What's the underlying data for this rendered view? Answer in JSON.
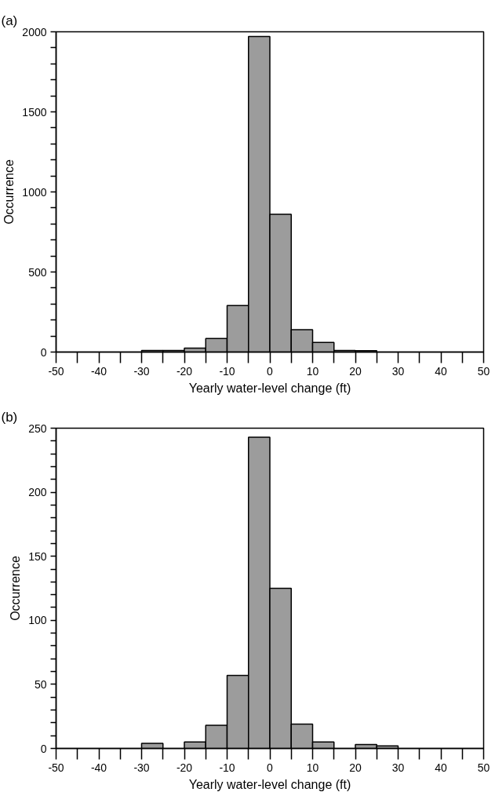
{
  "chart_data": [
    {
      "type": "histogram",
      "title": "(a)",
      "xlabel": "Yearly water-level change (ft)",
      "ylabel": "Occurrence",
      "color": "#9c9c9c",
      "bins": [
        -50,
        -45,
        -40,
        -35,
        -30,
        -25,
        -20,
        -15,
        -10,
        -5,
        0,
        5,
        10,
        15,
        20,
        25,
        30,
        35,
        40,
        45,
        50
      ],
      "values": [
        0,
        0,
        0,
        0,
        10,
        10,
        25,
        85,
        290,
        1970,
        860,
        140,
        60,
        10,
        8,
        0,
        0,
        0,
        0,
        0
      ],
      "xlim": [
        -50,
        50
      ],
      "ylim": [
        0,
        2000
      ],
      "xticks": [
        -50,
        {
          "value": -45,
          "label": null
        },
        -40,
        {
          "value": -35,
          "label": null
        },
        -30,
        {
          "value": -25,
          "label": null
        },
        -20,
        {
          "value": -15,
          "label": null
        },
        -10,
        {
          "value": -5,
          "label": null
        },
        0,
        {
          "value": 5,
          "label": null
        },
        10,
        {
          "value": 15,
          "label": null
        },
        20,
        {
          "value": 25,
          "label": null
        },
        30,
        {
          "value": 35,
          "label": null
        },
        40,
        {
          "value": 45,
          "label": null
        },
        50
      ],
      "yticks": [
        0,
        {
          "value": 100,
          "label": null
        },
        {
          "value": 200,
          "label": null
        },
        {
          "value": 300,
          "label": null
        },
        {
          "value": 400,
          "label": null
        },
        500,
        {
          "value": 600,
          "label": null
        },
        {
          "value": 700,
          "label": null
        },
        {
          "value": 800,
          "label": null
        },
        {
          "value": 900,
          "label": null
        },
        1000,
        {
          "value": 1100,
          "label": null
        },
        {
          "value": 1200,
          "label": null
        },
        {
          "value": 1300,
          "label": null
        },
        {
          "value": 1400,
          "label": null
        },
        1500,
        {
          "value": 1600,
          "label": null
        },
        {
          "value": 1700,
          "label": null
        },
        {
          "value": 1800,
          "label": null
        },
        {
          "value": 1900,
          "label": null
        },
        2000
      ],
      "grid": false
    },
    {
      "type": "histogram",
      "title": "(b)",
      "xlabel": "Yearly water-level change (ft)",
      "ylabel": "Occurrence",
      "color": "#9c9c9c",
      "bins": [
        -50,
        -45,
        -40,
        -35,
        -30,
        -25,
        -20,
        -15,
        -10,
        -5,
        0,
        5,
        10,
        15,
        20,
        25,
        30,
        35,
        40,
        45,
        50
      ],
      "values": [
        0,
        0,
        0,
        0,
        4,
        0,
        5,
        18,
        57,
        243,
        125,
        19,
        5,
        0,
        3,
        2,
        0,
        0,
        0,
        0
      ],
      "xlim": [
        -50,
        50
      ],
      "ylim": [
        0,
        250
      ],
      "xticks": [
        -50,
        {
          "value": -45,
          "label": null
        },
        -40,
        {
          "value": -35,
          "label": null
        },
        -30,
        {
          "value": -25,
          "label": null
        },
        -20,
        {
          "value": -15,
          "label": null
        },
        -10,
        {
          "value": -5,
          "label": null
        },
        0,
        {
          "value": 5,
          "label": null
        },
        10,
        {
          "value": 15,
          "label": null
        },
        20,
        {
          "value": 25,
          "label": null
        },
        30,
        {
          "value": 35,
          "label": null
        },
        40,
        {
          "value": 45,
          "label": null
        },
        50
      ],
      "yticks": [
        0,
        {
          "value": 10,
          "label": null
        },
        {
          "value": 20,
          "label": null
        },
        {
          "value": 30,
          "label": null
        },
        {
          "value": 40,
          "label": null
        },
        50,
        {
          "value": 60,
          "label": null
        },
        {
          "value": 70,
          "label": null
        },
        {
          "value": 80,
          "label": null
        },
        {
          "value": 90,
          "label": null
        },
        100,
        {
          "value": 110,
          "label": null
        },
        {
          "value": 120,
          "label": null
        },
        {
          "value": 130,
          "label": null
        },
        {
          "value": 140,
          "label": null
        },
        150,
        {
          "value": 160,
          "label": null
        },
        {
          "value": 170,
          "label": null
        },
        {
          "value": 180,
          "label": null
        },
        {
          "value": 190,
          "label": null
        },
        200,
        {
          "value": 210,
          "label": null
        },
        {
          "value": 220,
          "label": null
        },
        {
          "value": 230,
          "label": null
        },
        {
          "value": 240,
          "label": null
        },
        250
      ],
      "grid": false
    }
  ]
}
